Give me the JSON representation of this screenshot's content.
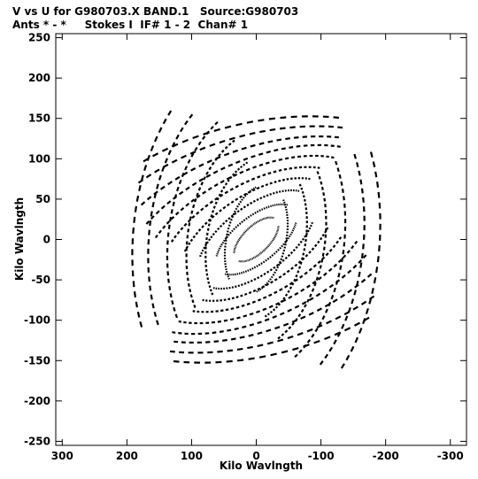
{
  "header": {
    "line1": "V vs U for G980703.X BAND.1   Source:G980703",
    "line2": "Ants * - *     Stokes I  IF# 1 - 2  Chan# 1"
  },
  "chart_data": {
    "type": "scatter",
    "title": "V vs U for G980703.X BAND.1   Source:G980703",
    "subtitle": "Ants * - *     Stokes I  IF# 1 - 2  Chan# 1",
    "xlabel": "Kilo Wavlngth",
    "ylabel": "Kilo Wavlngth",
    "xlim": [
      310,
      -325
    ],
    "ylim": [
      -255,
      255
    ],
    "x_ticks": [
      300,
      200,
      100,
      0,
      -100,
      -200,
      -300
    ],
    "x_tick_labels": [
      "300",
      "200",
      "100",
      "0",
      "-100",
      "-200",
      "-300"
    ],
    "y_ticks": [
      250,
      200,
      150,
      100,
      50,
      0,
      -50,
      -100,
      -150,
      -200,
      -250
    ],
    "y_tick_labels": [
      "250",
      "200",
      "150",
      "100",
      "50",
      "0",
      "-50",
      "-100",
      "-150",
      "-200",
      "-250"
    ],
    "grid": false,
    "marker_color": "#000000",
    "uv_coverage": {
      "description_type": "elliptical track arcs, Hermitian-symmetric (u,v) and (-u,-v)",
      "tracks": [
        {
          "center": [
            0,
            0
          ],
          "semi_axes": [
            40,
            18
          ],
          "angle_deg": -35,
          "sweep_deg": [
            20,
            160
          ]
        },
        {
          "center": [
            0,
            0
          ],
          "semi_axes": [
            70,
            30
          ],
          "angle_deg": -30,
          "sweep_deg": [
            25,
            155
          ]
        },
        {
          "center": [
            0,
            0
          ],
          "semi_axes": [
            100,
            44
          ],
          "angle_deg": -28,
          "sweep_deg": [
            30,
            150
          ]
        },
        {
          "center": [
            0,
            0
          ],
          "semi_axes": [
            130,
            58
          ],
          "angle_deg": -25,
          "sweep_deg": [
            35,
            145
          ]
        },
        {
          "center": [
            0,
            0
          ],
          "semi_axes": [
            160,
            72
          ],
          "angle_deg": -22,
          "sweep_deg": [
            40,
            140
          ]
        },
        {
          "center": [
            0,
            0
          ],
          "semi_axes": [
            190,
            86
          ],
          "angle_deg": -20,
          "sweep_deg": [
            40,
            140
          ]
        },
        {
          "center": [
            0,
            0
          ],
          "semi_axes": [
            220,
            100
          ],
          "angle_deg": -18,
          "sweep_deg": [
            45,
            135
          ]
        },
        {
          "center": [
            0,
            0
          ],
          "semi_axes": [
            250,
            114
          ],
          "angle_deg": -15,
          "sweep_deg": [
            50,
            130
          ]
        },
        {
          "center": [
            0,
            0
          ],
          "semi_axes": [
            285,
            130
          ],
          "angle_deg": -12,
          "sweep_deg": [
            55,
            125
          ]
        },
        {
          "center": [
            0,
            0
          ],
          "semi_axes": [
            310,
            145
          ],
          "angle_deg": -10,
          "sweep_deg": [
            60,
            120
          ]
        },
        {
          "center": [
            0,
            0
          ],
          "semi_axes": [
            45,
            70
          ],
          "angle_deg": 20,
          "sweep_deg": [
            -60,
            60
          ]
        },
        {
          "center": [
            0,
            0
          ],
          "semi_axes": [
            75,
            105
          ],
          "angle_deg": 18,
          "sweep_deg": [
            -55,
            55
          ]
        },
        {
          "center": [
            0,
            0
          ],
          "semi_axes": [
            105,
            140
          ],
          "angle_deg": 16,
          "sweep_deg": [
            -50,
            50
          ]
        },
        {
          "center": [
            0,
            0
          ],
          "semi_axes": [
            135,
            175
          ],
          "angle_deg": 14,
          "sweep_deg": [
            -45,
            45
          ]
        },
        {
          "center": [
            0,
            0
          ],
          "semi_axes": [
            165,
            210
          ],
          "angle_deg": 12,
          "sweep_deg": [
            -40,
            40
          ]
        },
        {
          "center": [
            0,
            0
          ],
          "semi_axes": [
            190,
            240
          ],
          "angle_deg": 10,
          "sweep_deg": [
            -35,
            35
          ]
        }
      ]
    }
  }
}
